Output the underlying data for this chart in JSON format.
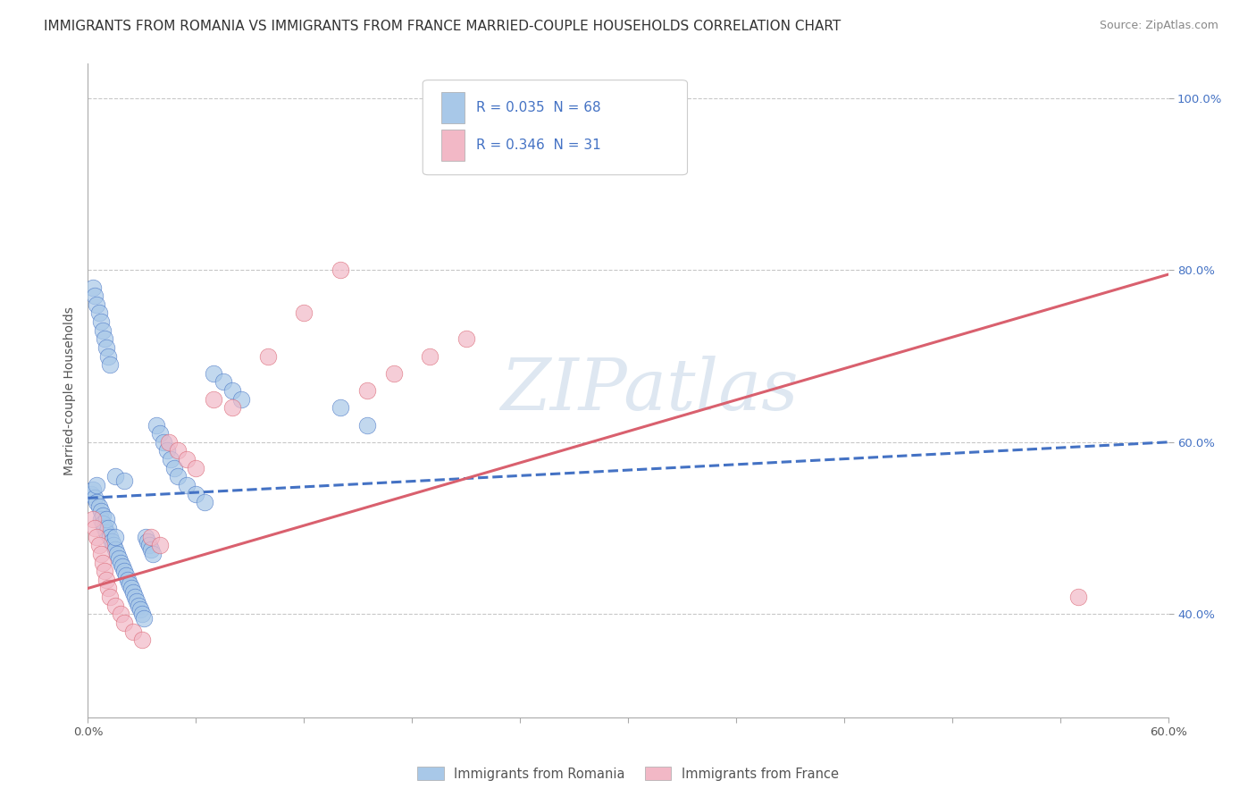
{
  "title": "IMMIGRANTS FROM ROMANIA VS IMMIGRANTS FROM FRANCE MARRIED-COUPLE HOUSEHOLDS CORRELATION CHART",
  "source": "Source: ZipAtlas.com",
  "ylabel": "Married-couple Households",
  "legend1_label": "Immigrants from Romania",
  "legend2_label": "Immigrants from France",
  "R1": 0.035,
  "N1": 68,
  "R2": 0.346,
  "N2": 31,
  "color1": "#a8c8e8",
  "color2": "#f2b8c6",
  "trendline1_color": "#4472c4",
  "trendline2_color": "#d9606e",
  "watermark": "ZIPatlas",
  "xlim": [
    0.0,
    0.6
  ],
  "ylim": [
    0.28,
    1.04
  ],
  "yticks": [
    0.4,
    0.6,
    0.8,
    1.0
  ],
  "xtick_positions": [
    0.0,
    0.06,
    0.12,
    0.18,
    0.24,
    0.3,
    0.36,
    0.42,
    0.48,
    0.54,
    0.6
  ],
  "blue_scatter_x": [
    0.002,
    0.003,
    0.004,
    0.005,
    0.005,
    0.006,
    0.007,
    0.007,
    0.008,
    0.008,
    0.009,
    0.01,
    0.01,
    0.011,
    0.012,
    0.013,
    0.014,
    0.015,
    0.015,
    0.016,
    0.017,
    0.018,
    0.019,
    0.02,
    0.021,
    0.022,
    0.023,
    0.024,
    0.025,
    0.026,
    0.027,
    0.028,
    0.029,
    0.03,
    0.031,
    0.032,
    0.033,
    0.034,
    0.035,
    0.036,
    0.038,
    0.04,
    0.042,
    0.044,
    0.046,
    0.048,
    0.05,
    0.055,
    0.06,
    0.065,
    0.07,
    0.075,
    0.08,
    0.085,
    0.003,
    0.004,
    0.005,
    0.006,
    0.007,
    0.008,
    0.009,
    0.01,
    0.011,
    0.012,
    0.015,
    0.02,
    0.14,
    0.155
  ],
  "blue_scatter_y": [
    0.54,
    0.545,
    0.535,
    0.53,
    0.55,
    0.525,
    0.52,
    0.51,
    0.515,
    0.505,
    0.5,
    0.495,
    0.51,
    0.5,
    0.49,
    0.485,
    0.48,
    0.475,
    0.49,
    0.47,
    0.465,
    0.46,
    0.455,
    0.45,
    0.445,
    0.44,
    0.435,
    0.43,
    0.425,
    0.42,
    0.415,
    0.41,
    0.405,
    0.4,
    0.395,
    0.49,
    0.485,
    0.48,
    0.475,
    0.47,
    0.62,
    0.61,
    0.6,
    0.59,
    0.58,
    0.57,
    0.56,
    0.55,
    0.54,
    0.53,
    0.68,
    0.67,
    0.66,
    0.65,
    0.78,
    0.77,
    0.76,
    0.75,
    0.74,
    0.73,
    0.72,
    0.71,
    0.7,
    0.69,
    0.56,
    0.555,
    0.64,
    0.62
  ],
  "pink_scatter_x": [
    0.003,
    0.004,
    0.005,
    0.006,
    0.007,
    0.008,
    0.009,
    0.01,
    0.011,
    0.012,
    0.015,
    0.018,
    0.02,
    0.025,
    0.03,
    0.035,
    0.04,
    0.045,
    0.05,
    0.055,
    0.06,
    0.07,
    0.08,
    0.1,
    0.12,
    0.14,
    0.155,
    0.17,
    0.19,
    0.21,
    0.55
  ],
  "pink_scatter_y": [
    0.51,
    0.5,
    0.49,
    0.48,
    0.47,
    0.46,
    0.45,
    0.44,
    0.43,
    0.42,
    0.41,
    0.4,
    0.39,
    0.38,
    0.37,
    0.49,
    0.48,
    0.6,
    0.59,
    0.58,
    0.57,
    0.65,
    0.64,
    0.7,
    0.75,
    0.8,
    0.66,
    0.68,
    0.7,
    0.72,
    0.42
  ],
  "trendline1_x": [
    0.0,
    0.6
  ],
  "trendline1_y": [
    0.535,
    0.6
  ],
  "trendline2_x": [
    0.0,
    0.6
  ],
  "trendline2_y": [
    0.43,
    0.795
  ],
  "bg_color": "#ffffff",
  "grid_color": "#c8c8c8",
  "title_fontsize": 11,
  "axis_label_fontsize": 10,
  "tick_fontsize": 9.5,
  "legend_fontsize": 11
}
